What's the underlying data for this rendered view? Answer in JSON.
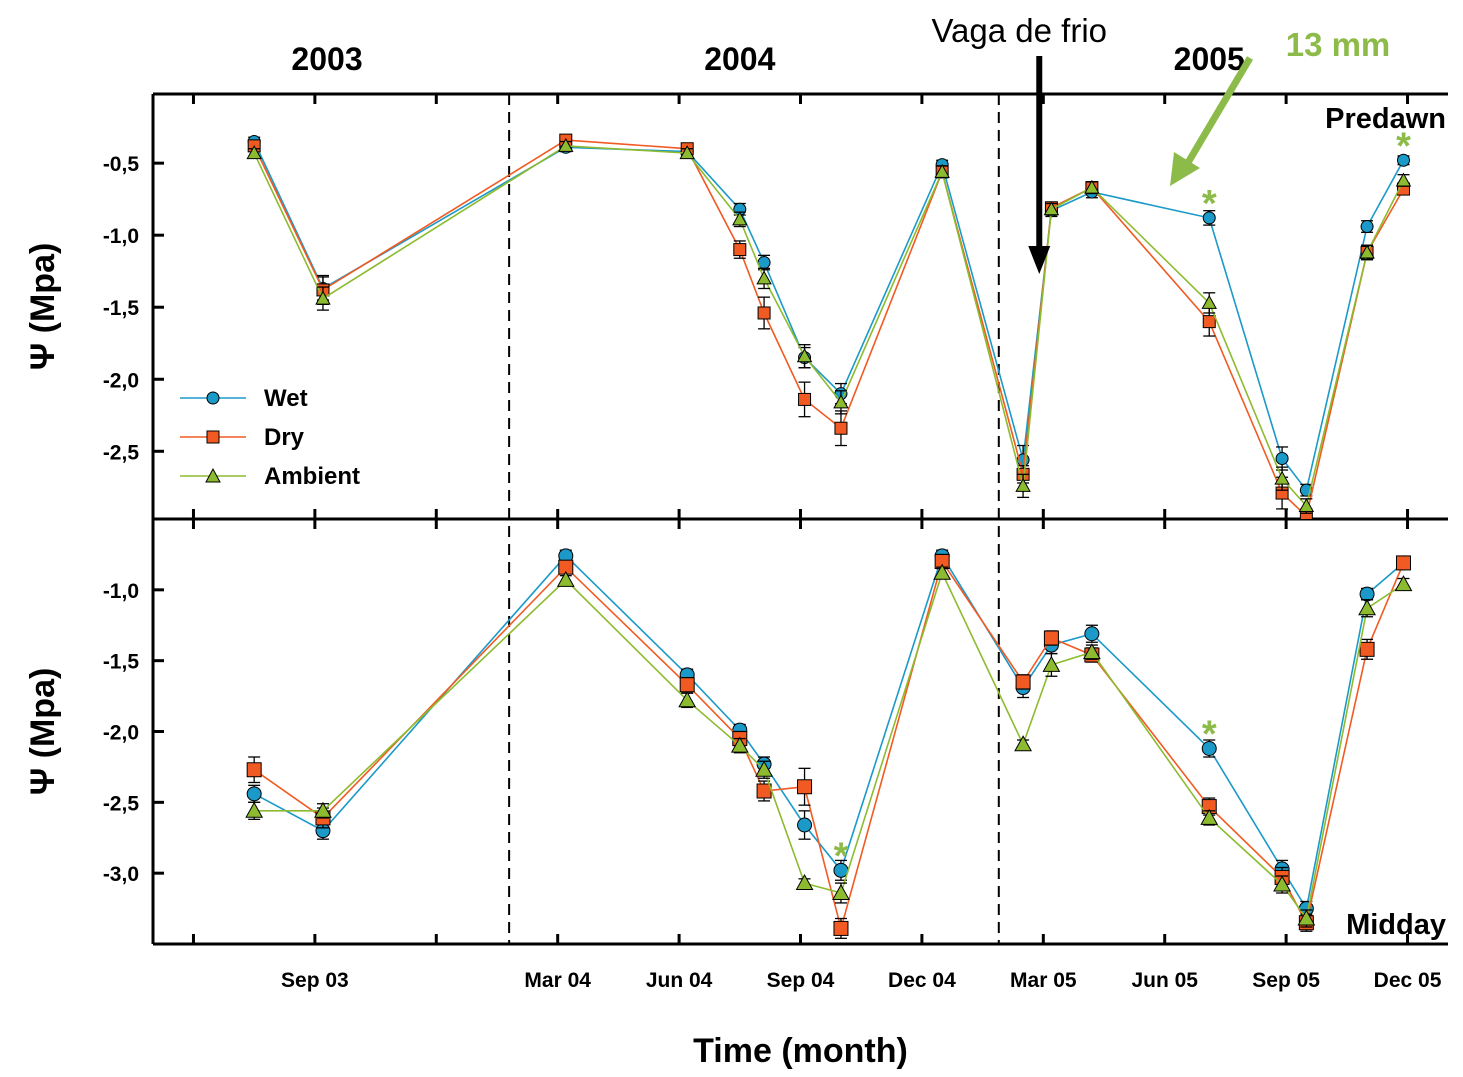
{
  "chart_data": {
    "type": "line",
    "xlabel": "Time (month)",
    "x_tick_labels": [
      "Sep 03",
      "Mar 04",
      "Jun 04",
      "Sep 04",
      "Dec 04",
      "Mar 05",
      "Jun 05",
      "Sep 05",
      "Dec 05"
    ],
    "x_tick_months": [
      8,
      14,
      17,
      20,
      23,
      26,
      29,
      32,
      35
    ],
    "year_labels": [
      "2003",
      "2004",
      "2005"
    ],
    "year_label_months": [
      8.3,
      18.5,
      30.1
    ],
    "year_dividers": [
      12.8,
      24.9
    ],
    "annotations": {
      "cold_spell": "Vaga de frio",
      "cold_spell_month": 25.9,
      "rain": "13 mm",
      "star": "*"
    },
    "legend": {
      "position": "left",
      "entries": [
        "Wet",
        "Dry",
        "Ambient"
      ]
    },
    "colors": {
      "Wet": "#1b9ac9",
      "Dry": "#f15a22",
      "Ambient": "#8dbb2f",
      "annotation": "#8dbb4a"
    },
    "x": [
      6.5,
      8.2,
      14.2,
      17.2,
      18.5,
      19.1,
      20.1,
      21.0,
      23.5,
      25.5,
      26.2,
      27.2,
      30.1,
      31.9,
      32.5,
      34.0,
      34.9
    ],
    "panels": [
      {
        "label": "Predawn",
        "ylabel": "Ψ (Mpa)",
        "ylim": [
          -2.97,
          -0.02
        ],
        "yticks": [
          -0.5,
          -1.0,
          -1.5,
          -2.0,
          -2.5
        ],
        "ytick_labels": [
          "-0,5",
          "-1,0",
          "-1,5",
          "-2,0",
          "-2,5"
        ],
        "significance_months": [
          30.1,
          34.9
        ],
        "series": [
          {
            "name": "Wet",
            "values": [
              -0.35,
              -1.37,
              -0.39,
              -0.42,
              -0.82,
              -1.19,
              -1.85,
              -2.1,
              -0.51,
              -2.56,
              -0.83,
              -0.7,
              -0.88,
              -2.55,
              -2.77,
              -0.94,
              -0.48
            ],
            "errors": [
              0.03,
              0.08,
              0.03,
              0.03,
              0.04,
              0.05,
              0.07,
              0.07,
              0.03,
              0.1,
              0.04,
              0.04,
              0.05,
              0.08,
              0.04,
              0.04,
              0.03
            ]
          },
          {
            "name": "Dry",
            "values": [
              -0.38,
              -1.38,
              -0.34,
              -0.4,
              -1.1,
              -1.54,
              -2.14,
              -2.34,
              -0.56,
              -2.66,
              -0.81,
              -0.67,
              -1.6,
              -2.79,
              -2.95,
              -1.12,
              -0.68
            ],
            "errors": [
              0.03,
              0.1,
              0.03,
              0.03,
              0.06,
              0.11,
              0.12,
              0.12,
              0.04,
              0.06,
              0.04,
              0.04,
              0.1,
              0.11,
              0.05,
              0.05,
              0.04
            ]
          },
          {
            "name": "Ambient",
            "values": [
              -0.43,
              -1.44,
              -0.38,
              -0.43,
              -0.89,
              -1.3,
              -1.84,
              -2.16,
              -0.56,
              -2.74,
              -0.82,
              -0.67,
              -1.47,
              -2.69,
              -2.88,
              -1.12,
              -0.62
            ],
            "errors": [
              0.03,
              0.08,
              0.03,
              0.03,
              0.05,
              0.07,
              0.08,
              0.08,
              0.04,
              0.08,
              0.04,
              0.04,
              0.07,
              0.08,
              0.05,
              0.05,
              0.04
            ]
          }
        ]
      },
      {
        "label": "Midday",
        "ylabel": "Ψ (Mpa)",
        "ylim": [
          -3.5,
          -0.5
        ],
        "yticks": [
          -1.0,
          -1.5,
          -2.0,
          -2.5,
          -3.0
        ],
        "ytick_labels": [
          "-1,0",
          "-1,5",
          "-2,0",
          "-2,5",
          "-3,0"
        ],
        "significance_months": [
          21.0,
          30.1
        ],
        "series": [
          {
            "name": "Wet",
            "values": [
              -2.44,
              -2.7,
              -0.76,
              -1.6,
              -1.99,
              -2.23,
              -2.66,
              -2.98,
              -0.76,
              -1.69,
              -1.39,
              -1.31,
              -2.12,
              -2.97,
              -3.25,
              -1.03,
              -0.81
            ],
            "errors": [
              0.06,
              0.06,
              0.04,
              0.04,
              0.04,
              0.05,
              0.1,
              0.07,
              0.04,
              0.07,
              0.06,
              0.06,
              0.06,
              0.06,
              0.05,
              0.04,
              0.03
            ]
          },
          {
            "name": "Dry",
            "values": [
              -2.27,
              -2.61,
              -0.84,
              -1.67,
              -2.05,
              -2.42,
              -2.39,
              -3.39,
              -0.8,
              -1.65,
              -1.34,
              -1.46,
              -2.53,
              -3.03,
              -3.35,
              -1.42,
              -0.81
            ],
            "errors": [
              0.09,
              0.07,
              0.04,
              0.05,
              0.05,
              0.07,
              0.13,
              0.07,
              0.05,
              0.05,
              0.05,
              0.05,
              0.06,
              0.07,
              0.06,
              0.07,
              0.03
            ]
          },
          {
            "name": "Ambient",
            "values": [
              -2.56,
              -2.56,
              -0.93,
              -1.78,
              -2.1,
              -2.27,
              -3.07,
              -3.14,
              -0.88,
              -2.09,
              -1.53,
              -1.44,
              -2.61,
              -3.08,
              -3.32,
              -1.13,
              -0.96
            ],
            "errors": [
              0.06,
              0.05,
              0.03,
              0.05,
              0.05,
              0.06,
              0.03,
              0.07,
              0.04,
              0.03,
              0.08,
              0.05,
              0.05,
              0.06,
              0.06,
              0.06,
              0.04
            ]
          }
        ]
      }
    ]
  }
}
